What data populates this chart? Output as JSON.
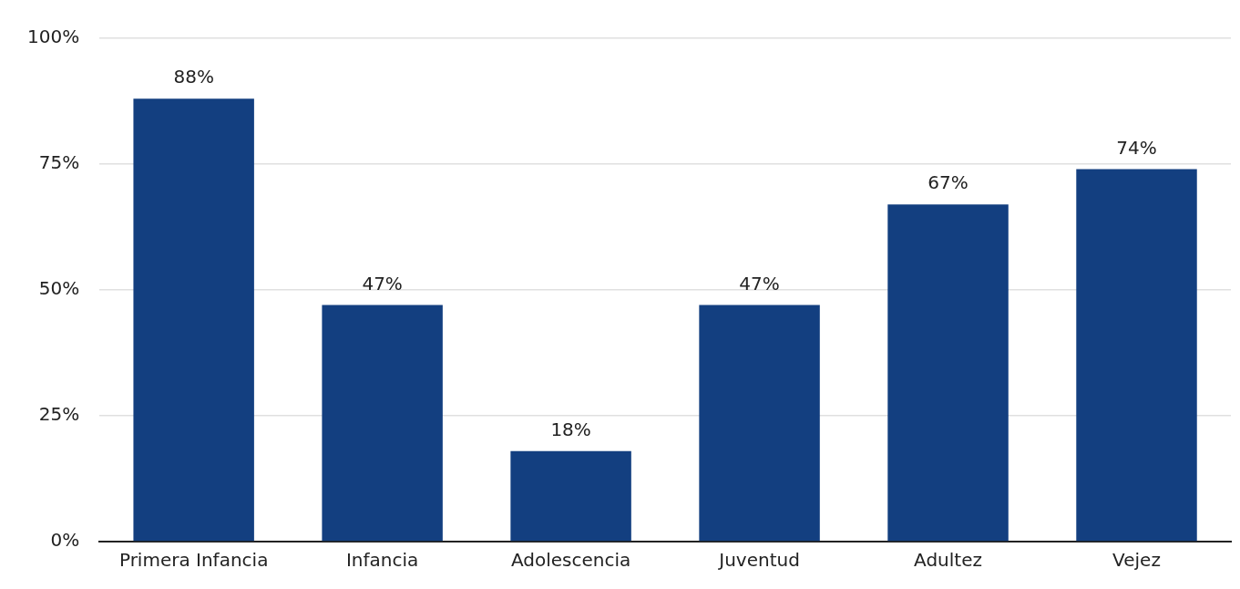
{
  "chart_data": {
    "type": "bar",
    "categories": [
      "Primera Infancia",
      "Infancia",
      "Adolescencia",
      "Juventud",
      "Adultez",
      "Vejez"
    ],
    "values": [
      88,
      47,
      18,
      47,
      67,
      74
    ],
    "value_labels": [
      "88%",
      "47%",
      "18%",
      "47%",
      "67%",
      "74%"
    ],
    "color": "#133f80",
    "ylim": [
      0,
      100
    ],
    "yticks": [
      {
        "value": 0,
        "label": "0%"
      },
      {
        "value": 25,
        "label": "25%"
      },
      {
        "value": 50,
        "label": "50%"
      },
      {
        "value": 75,
        "label": "75%"
      },
      {
        "value": 100,
        "label": "100%"
      }
    ],
    "grid": "y",
    "legend": false
  }
}
